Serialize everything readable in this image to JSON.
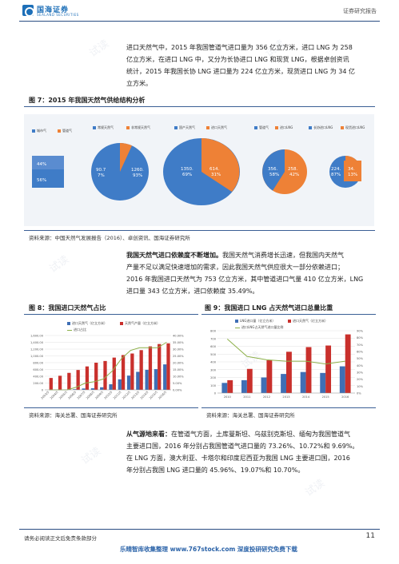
{
  "header": {
    "logo_cn": "国海证券",
    "logo_en": "SEALAND SECURITIES",
    "right_title": "证券研究报告"
  },
  "para1": {
    "lines": [
      "进口天然气中，2015 年我国管道气进口量为 356 亿立方米，进口 LNG 为 258",
      "亿立方米，在进口 LNG 中，又分为长协进口 LNG 和现货 LNG，根据卓创资讯",
      "统计，2015 年我国长协 LNG 进口量为 224 亿立方米，现货进口 LNG 为 34 亿",
      "立方米。"
    ]
  },
  "fig7": {
    "title": "图 7：2015 年我国天然气供给结构分析",
    "source": "资料来源：中国天然气发展报告（2016）、卓创资讯、国海证券研究所",
    "legend": [
      "城市气",
      "管道气",
      "常规天然气",
      "非常规天然气",
      "国产天然气",
      "进口天然气",
      "管道气",
      "进口LNG",
      "长协进口LNG",
      "现货进口LNG"
    ],
    "pies": [
      {
        "labels": [
          "44%",
          "56%"
        ]
      },
      {
        "labels": [
          "90.7",
          "7%"
        ]
      },
      {
        "labels": [
          "1260.",
          "93%"
        ]
      },
      {
        "labels": [
          "1350.",
          "69%"
        ]
      },
      {
        "labels": [
          "614.",
          "31%"
        ]
      },
      {
        "labels": [
          "356.",
          "58%"
        ]
      },
      {
        "labels": [
          "258.",
          "42%"
        ]
      },
      {
        "labels": [
          "224.",
          "87%"
        ]
      },
      {
        "labels": [
          "34.",
          "13%"
        ]
      }
    ]
  },
  "para2": {
    "lines": [
      {
        "bold": "我国天然气进口依赖度不断增加。",
        "rest": "我国天然气消费增长迅速，但我国内天然气"
      },
      {
        "bold": "",
        "rest": "产量不足以满足快速增加的需求，因此我国天然气供应很大一部分依赖进口；"
      },
      {
        "bold": "",
        "rest": "2016 年我国进口天然气为 753 亿立方米，其中管道进口气量 410 亿立方米，LNG"
      },
      {
        "bold": "",
        "rest": "进口量 343 亿立方米，进口依赖度 35.49%。"
      }
    ]
  },
  "fig8": {
    "title": "图 8：我国进口天然气占比",
    "source": "资料来源：海关总署、国海证券研究所",
    "legend": [
      "进口天然气（亿立方米）",
      "天然气产量（亿立方米）",
      "进口占比"
    ]
  },
  "fig9": {
    "title": "图 9：我国进口 LNG 占天然气进口总量比重",
    "source": "资料来源：海关总署、国海证券研究所",
    "legend": [
      "LNG进口量（亿立方米）",
      "进口天然气（亿立方米）",
      "进口LNG占天然气进口量比例"
    ]
  },
  "chart_data": [
    {
      "type": "bar",
      "title": "",
      "categories": [
        "2003/5",
        "2004/5",
        "2005/5",
        "2006/5",
        "2007/5",
        "2008/5",
        "2009/5",
        "2010/5",
        "2011/5",
        "2012/5",
        "2013/5",
        "2014/5",
        "2015/5",
        "2016/5"
      ],
      "series": [
        {
          "name": "进口天然气（亿立方米）",
          "values": [
            0,
            0,
            0,
            20,
            40,
            46,
            76,
            165,
            310,
            420,
            530,
            590,
            610,
            750
          ],
          "color": "#3f6fb5"
        },
        {
          "name": "天然气产量（亿立方米）",
          "values": [
            350,
            415,
            500,
            585,
            690,
            800,
            850,
            950,
            1025,
            1070,
            1170,
            1280,
            1350,
            1370
          ],
          "color": "#c9302c"
        },
        {
          "name": "进口占比",
          "values": [
            0,
            0,
            0,
            2,
            5,
            6,
            8,
            14,
            23,
            29,
            31,
            31,
            31,
            35
          ],
          "color": "#8db04a"
        }
      ],
      "y_left": {
        "ticks": [
          "0",
          "200.00",
          "400.00",
          "600.00",
          "800.00",
          "1,000.00",
          "1,200.00",
          "1,400.00",
          "1,600.00"
        ],
        "max": 1600
      },
      "y_right": {
        "ticks": [
          "0.00%",
          "5.00%",
          "10.00%",
          "15.00%",
          "20.00%",
          "25.00%",
          "30.00%",
          "35.00%",
          "40.00%"
        ],
        "max": 40
      }
    },
    {
      "type": "bar",
      "title": "",
      "categories": [
        "2010",
        "2011",
        "2012",
        "2013",
        "2014",
        "2015",
        "2016"
      ],
      "series": [
        {
          "name": "LNG进口量（亿立方米）",
          "values": [
            130,
            165,
            200,
            245,
            270,
            258,
            343
          ],
          "color": "#3f6fb5"
        },
        {
          "name": "进口天然气（亿立方米）",
          "values": [
            165,
            310,
            420,
            530,
            590,
            610,
            753
          ],
          "color": "#c9302c"
        },
        {
          "name": "进口LNG占天然气进口量比例",
          "values": [
            78,
            53,
            48,
            46,
            46,
            42,
            46
          ],
          "color": "#8db04a"
        }
      ],
      "y_left": {
        "ticks": [
          "0",
          "100",
          "200",
          "300",
          "400",
          "500",
          "600",
          "700",
          "800"
        ],
        "max": 800
      },
      "y_right": {
        "ticks": [
          "0%",
          "10%",
          "20%",
          "30%",
          "40%",
          "50%",
          "60%",
          "70%",
          "80%",
          "90%"
        ],
        "max": 90
      }
    }
  ],
  "para3": {
    "lines": [
      {
        "bold": "从气源地来看：",
        "rest": "在管道气方面，土库曼斯坦、乌兹别克斯坦、缅甸为我国管道气"
      },
      {
        "bold": "",
        "rest": "主要进口国，2016 年分别占我国管道气进口量的 73.26%、10.72%和 9.69%。"
      },
      {
        "bold": "",
        "rest": "在 LNG 方面，澳大利亚、卡塔尔和印度尼西亚为我国 LNG 主要进口国，2016"
      },
      {
        "bold": "",
        "rest": "年分别占我国 LNG 进口量的 45.96%、19.07%和 10.70%。"
      }
    ]
  },
  "footer": {
    "left": "请务必阅读正文后免责条款部分",
    "page": "11",
    "banner": "乐晴智库收集整理 www.767stock.com 深度投研研究免费下载"
  },
  "colors": {
    "brand": "#1d6fb8",
    "pie_blue": "#3f7cc7",
    "pie_orange": "#ee8136",
    "bar_blue": "#3f6fb5",
    "bar_red": "#c9302c",
    "line_green": "#8db04a"
  }
}
